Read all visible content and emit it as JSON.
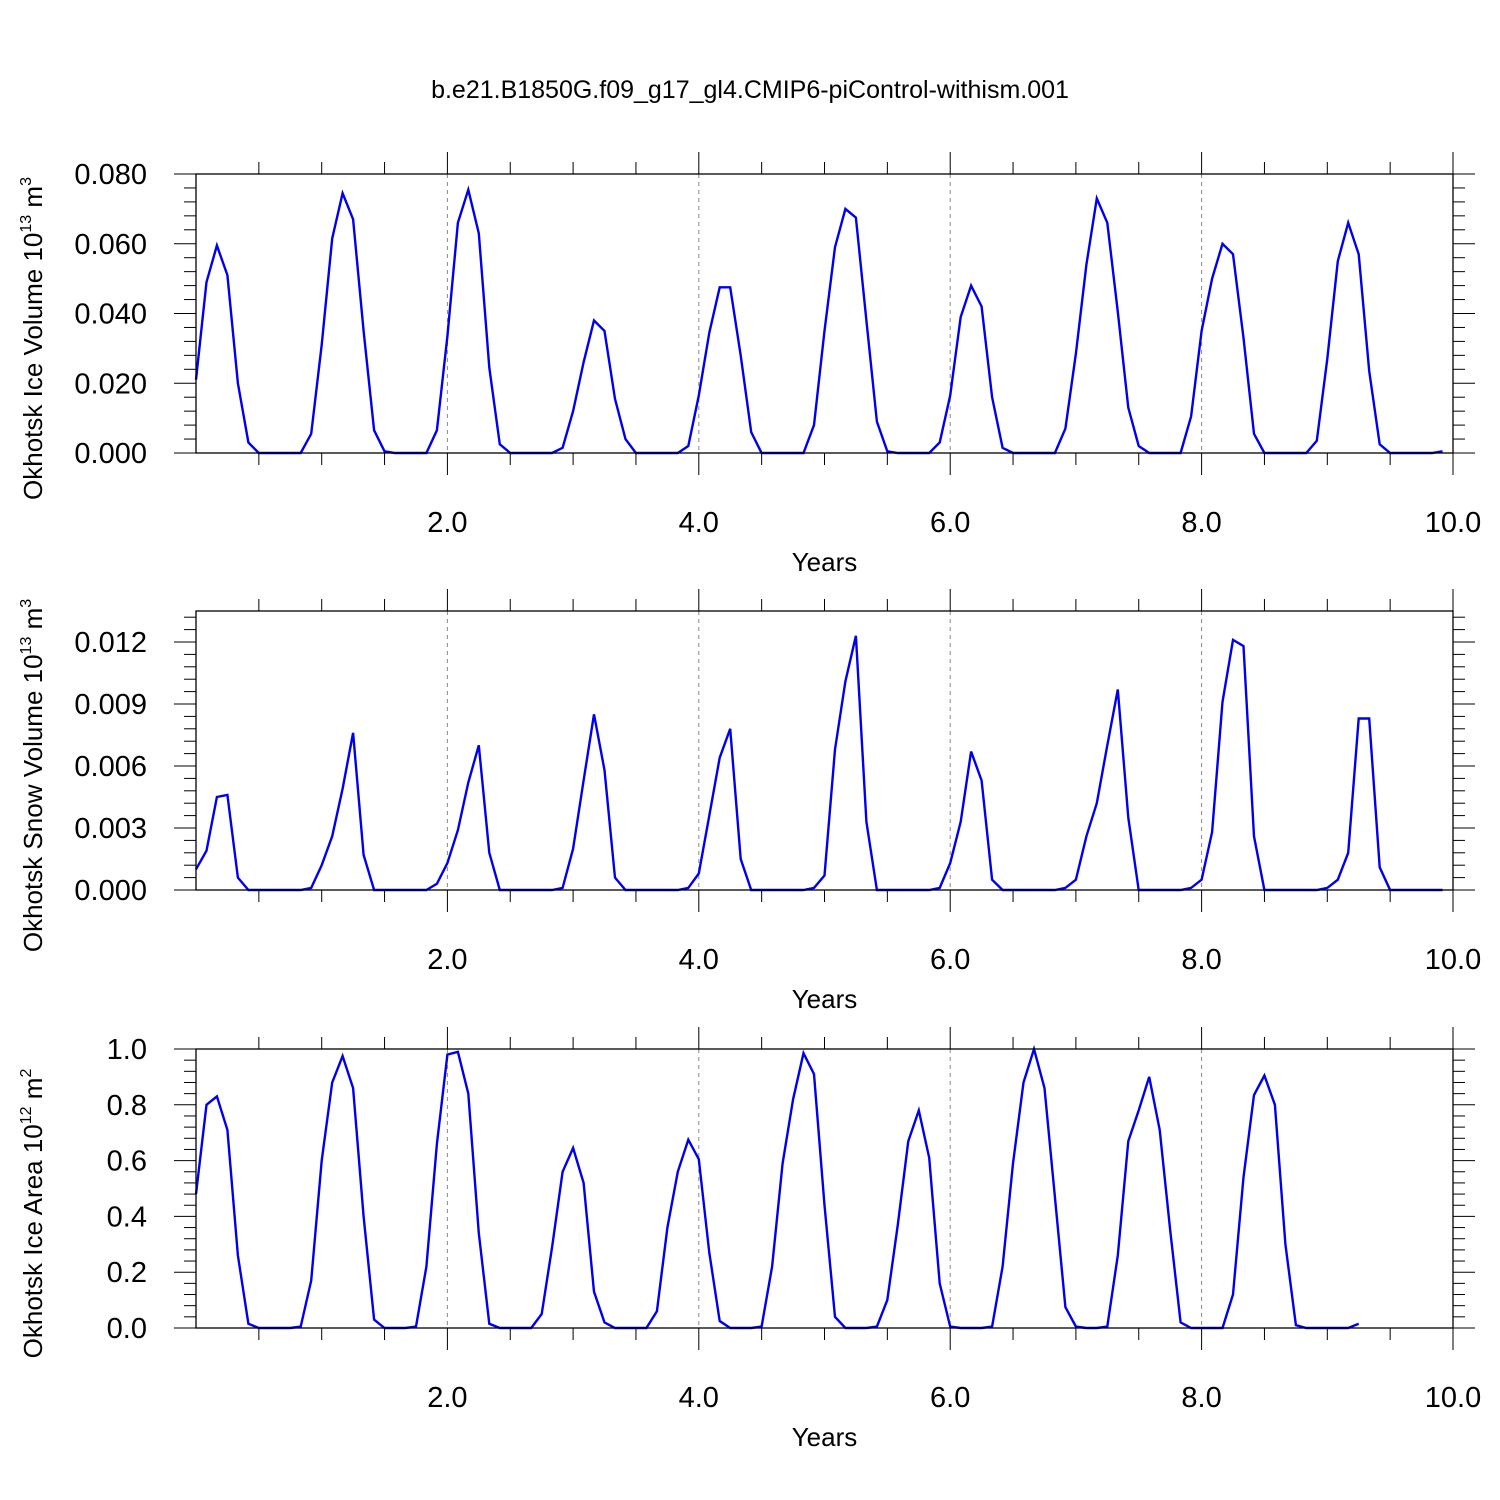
{
  "title": "b.e21.B1850G.f09_g17_gl4.CMIP6-piControl-withism.001",
  "colors": {
    "line": "#0000ee",
    "frame": "#000000",
    "grid": "#888888"
  },
  "chart_data": [
    {
      "type": "line",
      "ylabel": {
        "main": "Okhotsk Ice Volume 10",
        "exp": "13",
        "space": " m",
        "unit_exp": "3"
      },
      "xlabel": "Years",
      "xlim": [
        0.0,
        10.0
      ],
      "ylim": [
        0.0,
        0.08
      ],
      "yticks": [
        {
          "value": 0.0,
          "label": "0.000"
        },
        {
          "value": 0.02,
          "label": "0.020"
        },
        {
          "value": 0.04,
          "label": "0.040"
        },
        {
          "value": 0.06,
          "label": "0.060"
        },
        {
          "value": 0.08,
          "label": "0.080"
        }
      ],
      "xticks": [
        {
          "value": 2.0,
          "label": "2.0"
        },
        {
          "value": 4.0,
          "label": "4.0"
        },
        {
          "value": 6.0,
          "label": "6.0"
        },
        {
          "value": 8.0,
          "label": "8.0"
        },
        {
          "value": 10.0,
          "label": "10.0"
        }
      ],
      "grid": "vertical dashed at major x ticks",
      "x_start": 0.0,
      "x_step": 0.0833333,
      "values": [
        0.021,
        0.049,
        0.0595,
        0.051,
        0.02,
        0.003,
        0.0,
        0.0,
        0.0,
        0.0,
        0.0,
        0.0055,
        0.031,
        0.0615,
        0.0745,
        0.067,
        0.035,
        0.0065,
        0.0005,
        0.0,
        0.0,
        0.0,
        0.0,
        0.0065,
        0.0335,
        0.066,
        0.0755,
        0.063,
        0.0245,
        0.0025,
        0.0,
        0.0,
        0.0,
        0.0,
        0.0,
        0.0015,
        0.012,
        0.026,
        0.038,
        0.035,
        0.0155,
        0.004,
        0.0,
        0.0,
        0.0,
        0.0,
        0.0,
        0.002,
        0.0165,
        0.0345,
        0.0475,
        0.0475,
        0.028,
        0.006,
        0.0,
        0.0,
        0.0,
        0.0,
        0.0,
        0.008,
        0.035,
        0.059,
        0.07,
        0.0675,
        0.038,
        0.009,
        0.0005,
        0.0,
        0.0,
        0.0,
        0.0,
        0.003,
        0.0165,
        0.039,
        0.048,
        0.042,
        0.016,
        0.0015,
        0.0,
        0.0,
        0.0,
        0.0,
        0.0,
        0.007,
        0.0285,
        0.054,
        0.073,
        0.066,
        0.0405,
        0.013,
        0.002,
        0.0,
        0.0,
        0.0,
        0.0,
        0.0105,
        0.035,
        0.05,
        0.06,
        0.057,
        0.033,
        0.0055,
        0.0,
        0.0,
        0.0,
        0.0,
        0.0,
        0.0035,
        0.027,
        0.055,
        0.066,
        0.057,
        0.0235,
        0.0025,
        0.0,
        0.0,
        0.0,
        0.0,
        0.0,
        0.0005
      ]
    },
    {
      "type": "line",
      "ylabel": {
        "main": "Okhotsk Snow Volume 10",
        "exp": "13",
        "space": " m",
        "unit_exp": "3"
      },
      "xlabel": "Years",
      "xlim": [
        0.0,
        10.0
      ],
      "ylim": [
        0.0,
        0.0135
      ],
      "yticks": [
        {
          "value": 0.0,
          "label": "0.000"
        },
        {
          "value": 0.003,
          "label": "0.003"
        },
        {
          "value": 0.006,
          "label": "0.006"
        },
        {
          "value": 0.009,
          "label": "0.009"
        },
        {
          "value": 0.012,
          "label": "0.012"
        }
      ],
      "xticks": [
        {
          "value": 2.0,
          "label": "2.0"
        },
        {
          "value": 4.0,
          "label": "4.0"
        },
        {
          "value": 6.0,
          "label": "6.0"
        },
        {
          "value": 8.0,
          "label": "8.0"
        },
        {
          "value": 10.0,
          "label": "10.0"
        }
      ],
      "grid": "vertical dashed at major x ticks",
      "x_start": 0.0,
      "x_step": 0.0833333,
      "values": [
        0.001,
        0.0019,
        0.0045,
        0.0046,
        0.0006,
        0.0,
        0.0,
        0.0,
        0.0,
        0.0,
        0.0,
        0.0001,
        0.0012,
        0.0026,
        0.0049,
        0.0076,
        0.0017,
        0.0,
        0.0,
        0.0,
        0.0,
        0.0,
        0.0,
        0.0003,
        0.0013,
        0.0029,
        0.0052,
        0.007,
        0.0018,
        0.0,
        0.0,
        0.0,
        0.0,
        0.0,
        0.0,
        0.0001,
        0.002,
        0.0053,
        0.0085,
        0.0058,
        0.0006,
        0.0,
        0.0,
        0.0,
        0.0,
        0.0,
        0.0,
        0.0001,
        0.0008,
        0.0036,
        0.0064,
        0.0078,
        0.0015,
        0.0,
        0.0,
        0.0,
        0.0,
        0.0,
        0.0,
        0.0001,
        0.0007,
        0.0068,
        0.0101,
        0.0123,
        0.0033,
        0.0,
        0.0,
        0.0,
        0.0,
        0.0,
        0.0,
        0.0001,
        0.0013,
        0.0033,
        0.0067,
        0.0053,
        0.0005,
        0.0,
        0.0,
        0.0,
        0.0,
        0.0,
        0.0,
        0.0001,
        0.0005,
        0.0026,
        0.0042,
        0.007,
        0.0097,
        0.0035,
        0.0,
        0.0,
        0.0,
        0.0,
        0.0,
        0.0001,
        0.0005,
        0.0028,
        0.0091,
        0.0121,
        0.0118,
        0.0026,
        0.0,
        0.0,
        0.0,
        0.0,
        0.0,
        0.0,
        0.0001,
        0.0005,
        0.0018,
        0.0083,
        0.0083,
        0.0011,
        0.0,
        0.0,
        0.0,
        0.0,
        0.0,
        0.0
      ]
    },
    {
      "type": "line",
      "ylabel": {
        "main": "Okhotsk Ice Area 10",
        "exp": "12",
        "space": " m",
        "unit_exp": "2"
      },
      "xlabel": "Years",
      "xlim": [
        0.0,
        10.0
      ],
      "ylim": [
        0.0,
        1.0
      ],
      "yticks": [
        {
          "value": 0.0,
          "label": "0.0"
        },
        {
          "value": 0.2,
          "label": "0.2"
        },
        {
          "value": 0.4,
          "label": "0.4"
        },
        {
          "value": 0.6,
          "label": "0.6"
        },
        {
          "value": 0.8,
          "label": "0.8"
        },
        {
          "value": 1.0,
          "label": "1.0"
        }
      ],
      "xticks": [
        {
          "value": 2.0,
          "label": "2.0"
        },
        {
          "value": 4.0,
          "label": "4.0"
        },
        {
          "value": 6.0,
          "label": "6.0"
        },
        {
          "value": 8.0,
          "label": "8.0"
        },
        {
          "value": 10.0,
          "label": "10.0"
        }
      ],
      "grid": "vertical dashed at major x ticks",
      "x_start": 0.0,
      "x_step": 0.0833333,
      "values": [
        0.48,
        0.8,
        0.83,
        0.71,
        0.26,
        0.015,
        0.0,
        0.0,
        0.0,
        0.0,
        0.005,
        0.17,
        0.6,
        0.88,
        0.975,
        0.86,
        0.4,
        0.03,
        0.0,
        0.0,
        0.0,
        0.005,
        0.22,
        0.66,
        0.98,
        0.99,
        0.84,
        0.34,
        0.015,
        0.0,
        0.0,
        0.0,
        0.0,
        0.05,
        0.29,
        0.56,
        0.645,
        0.52,
        0.13,
        0.02,
        0.0,
        0.0,
        0.0,
        0.0,
        0.06,
        0.36,
        0.56,
        0.675,
        0.605,
        0.27,
        0.025,
        0.0,
        0.0,
        0.0,
        0.005,
        0.22,
        0.59,
        0.82,
        0.985,
        0.91,
        0.44,
        0.04,
        0.0,
        0.0,
        0.0,
        0.005,
        0.1,
        0.37,
        0.67,
        0.78,
        0.61,
        0.16,
        0.005,
        0.0,
        0.0,
        0.0,
        0.005,
        0.22,
        0.59,
        0.88,
        1.0,
        0.86,
        0.47,
        0.075,
        0.005,
        0.0,
        0.0,
        0.005,
        0.26,
        0.67,
        0.78,
        0.9,
        0.71,
        0.35,
        0.02,
        0.0,
        0.0,
        0.0,
        0.0,
        0.12,
        0.54,
        0.835,
        0.905,
        0.8,
        0.3,
        0.01,
        0.0,
        0.0,
        0.0,
        0.0,
        0.0,
        0.015
      ]
    }
  ]
}
